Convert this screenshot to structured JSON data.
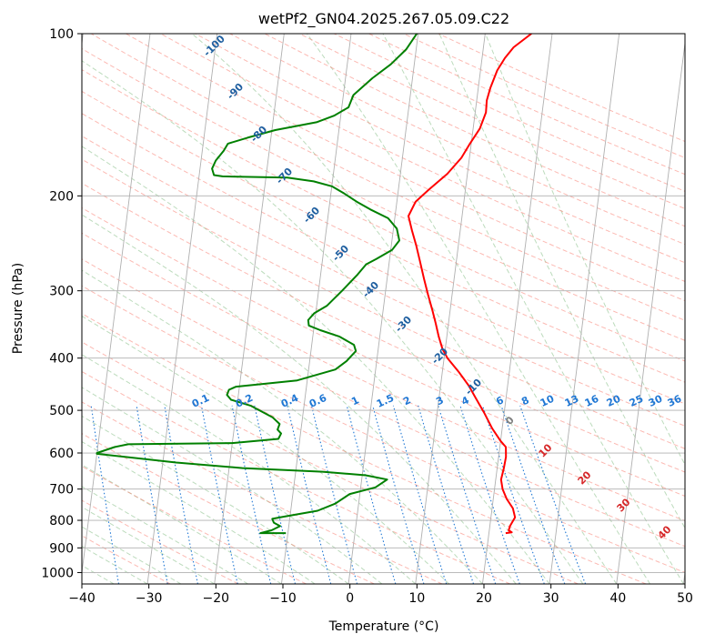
{
  "chart_data": {
    "type": "line",
    "title": "wetPf2_GN04.2025.267.05.09.C22",
    "xlabel": "Temperature (°C)",
    "ylabel": "Pressure (hPa)",
    "xlim": [
      -40,
      50
    ],
    "ylim": [
      1050,
      100
    ],
    "y_scale": "log",
    "grid": true,
    "x_ticks": [
      "−40",
      "−30",
      "−20",
      "−10",
      "0",
      "10",
      "20",
      "30",
      "40",
      "50"
    ],
    "x_tick_values": [
      -40,
      -30,
      -20,
      -10,
      0,
      10,
      20,
      30,
      40,
      50
    ],
    "y_ticks": [
      "100",
      "200",
      "300",
      "400",
      "500",
      "600",
      "700",
      "800",
      "900",
      "1000"
    ],
    "y_tick_values": [
      100,
      200,
      300,
      400,
      500,
      600,
      700,
      800,
      900,
      1000
    ],
    "series": [
      {
        "color": "#ff0000",
        "points": [
          [
            22.5,
            845
          ],
          [
            23.4,
            842
          ],
          [
            22.9,
            835
          ],
          [
            23.0,
            820
          ],
          [
            23.6,
            790
          ],
          [
            23.1,
            760
          ],
          [
            22.0,
            730
          ],
          [
            21.2,
            700
          ],
          [
            20.8,
            672
          ],
          [
            21.0,
            640
          ],
          [
            21.1,
            610
          ],
          [
            20.9,
            585
          ],
          [
            20.0,
            570
          ],
          [
            18.5,
            540
          ],
          [
            17.0,
            505
          ],
          [
            15.5,
            475
          ],
          [
            14.2,
            450
          ],
          [
            12.5,
            425
          ],
          [
            10.5,
            400
          ],
          [
            9.6,
            385
          ],
          [
            8.8,
            365
          ],
          [
            8.1,
            345
          ],
          [
            7.3,
            325
          ],
          [
            6.4,
            305
          ],
          [
            5.5,
            285
          ],
          [
            4.6,
            265
          ],
          [
            3.7,
            247
          ],
          [
            2.8,
            232
          ],
          [
            2.0,
            218
          ],
          [
            2.8,
            205
          ],
          [
            4.5,
            195
          ],
          [
            7.0,
            182
          ],
          [
            8.8,
            170
          ],
          [
            9.8,
            160
          ],
          [
            11.0,
            150
          ],
          [
            11.6,
            140
          ],
          [
            11.5,
            133
          ],
          [
            11.8,
            126
          ],
          [
            12.5,
            117
          ],
          [
            13.4,
            111
          ],
          [
            14.5,
            106
          ],
          [
            16.9,
            100
          ]
        ]
      },
      {
        "color": "#008000",
        "points": [
          [
            -10.3,
            845
          ],
          [
            -14.1,
            845
          ],
          [
            -12.5,
            835
          ],
          [
            -11.3,
            820
          ],
          [
            -12.3,
            808
          ],
          [
            -12.6,
            795
          ],
          [
            -11.0,
            788
          ],
          [
            -6.0,
            768
          ],
          [
            -3.5,
            745
          ],
          [
            -1.5,
            715
          ],
          [
            2.2,
            695
          ],
          [
            3.8,
            672
          ],
          [
            0.5,
            660
          ],
          [
            -6.0,
            650
          ],
          [
            -18.0,
            640
          ],
          [
            -28.0,
            625
          ],
          [
            -40.0,
            602
          ],
          [
            -40.0,
            600
          ],
          [
            -37.5,
            585
          ],
          [
            -35.5,
            578
          ],
          [
            -20.0,
            575
          ],
          [
            -13.2,
            565
          ],
          [
            -12.9,
            552
          ],
          [
            -13.5,
            543
          ],
          [
            -13.3,
            530
          ],
          [
            -14.5,
            515
          ],
          [
            -18.0,
            490
          ],
          [
            -21.0,
            478
          ],
          [
            -21.7,
            468
          ],
          [
            -21.5,
            458
          ],
          [
            -20.5,
            452
          ],
          [
            -11.5,
            440
          ],
          [
            -6.0,
            420
          ],
          [
            -4.5,
            405
          ],
          [
            -3.3,
            388
          ],
          [
            -3.7,
            378
          ],
          [
            -6.0,
            365
          ],
          [
            -9.0,
            355
          ],
          [
            -10.8,
            348
          ],
          [
            -11.0,
            340
          ],
          [
            -10.2,
            330
          ],
          [
            -8.5,
            320
          ],
          [
            -6.5,
            300
          ],
          [
            -4.5,
            280
          ],
          [
            -3.4,
            268
          ],
          [
            -2.0,
            262
          ],
          [
            0.2,
            252
          ],
          [
            1.1,
            242
          ],
          [
            0.5,
            230
          ],
          [
            -1.0,
            220
          ],
          [
            -3.8,
            212
          ],
          [
            -6.0,
            205
          ],
          [
            -8.0,
            198
          ],
          [
            -10.0,
            192
          ],
          [
            -12.8,
            188
          ],
          [
            -16.8,
            185
          ],
          [
            -26.5,
            184
          ],
          [
            -27.8,
            183
          ],
          [
            -28.2,
            178
          ],
          [
            -27.8,
            172
          ],
          [
            -26.8,
            165
          ],
          [
            -26.3,
            160
          ],
          [
            -23.5,
            156
          ],
          [
            -19.5,
            151
          ],
          [
            -13.5,
            146
          ],
          [
            -11.0,
            142
          ],
          [
            -9.0,
            137
          ],
          [
            -8.5,
            130
          ],
          [
            -6.0,
            121
          ],
          [
            -3.5,
            114
          ],
          [
            -1.5,
            107
          ],
          [
            -0.2,
            100
          ]
        ]
      }
    ],
    "reference_lines": {
      "isotherms_dry_adiabats": "solid grey",
      "dry_adiabat_labels": [
        "-100",
        "-90",
        "-80",
        "-70",
        "-60",
        "-50",
        "-40",
        "-30",
        "-20",
        "-10",
        "0",
        "10",
        "20",
        "30",
        "40"
      ],
      "mixing_ratio_labels": [
        "0.1",
        "0.2",
        "0.4",
        "0.6",
        "1",
        "1.5",
        "2",
        "3",
        "4",
        "6",
        "8",
        "10",
        "13",
        "16",
        "20",
        "25",
        "30",
        "36"
      ]
    },
    "colors": {
      "temperature": "#ff0000",
      "dewpoint": "#008000",
      "dry_adiabat": "#fa8072",
      "moist_adiabat": "#6ab06a",
      "mixing_ratio": "#1f77d4",
      "grid": "#b0b0b0",
      "dry_label_blue": "#1f5fa0",
      "dry_label_red": "#d62728"
    }
  }
}
